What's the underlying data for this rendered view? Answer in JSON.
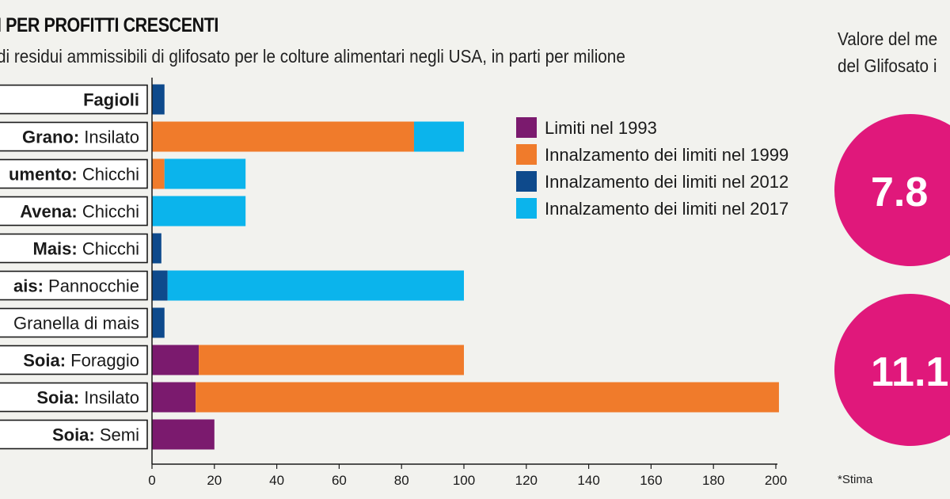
{
  "header": {
    "title": "I PER PROFITTI CRESCENTI",
    "subtitle": "di residui ammissibili di glifosato per le colture alimentari negli USA, in parti per milione"
  },
  "side": {
    "title_line1": "Valore del me",
    "title_line2": "del Glifosato i",
    "bubbles": [
      {
        "label": "7.8",
        "color": "#e0187b"
      },
      {
        "label": "11.1",
        "color": "#e0187b"
      }
    ],
    "footnote": "*Stima"
  },
  "chart_data": {
    "type": "bar",
    "orientation": "horizontal",
    "stacked": true,
    "categories": [
      {
        "bold": "Fagioli",
        "rest": ""
      },
      {
        "bold": "Grano:",
        "rest": " Insilato"
      },
      {
        "bold": "umento:",
        "rest": " Chicchi"
      },
      {
        "bold": "Avena:",
        "rest": " Chicchi"
      },
      {
        "bold": "Mais:",
        "rest": " Chicchi"
      },
      {
        "bold": "ais:",
        "rest": " Pannocchie"
      },
      {
        "bold": "",
        "rest": "Granella di mais"
      },
      {
        "bold": "Soia:",
        "rest": " Foraggio"
      },
      {
        "bold": "Soia:",
        "rest": " Insilato"
      },
      {
        "bold": "Soia:",
        "rest": " Semi"
      }
    ],
    "series": [
      {
        "name": "Limiti nel 1993",
        "color": "#7b1a6e",
        "values": [
          0,
          0,
          0,
          0,
          0,
          0,
          0,
          15,
          14,
          20
        ]
      },
      {
        "name": "Innalzamento dei limiti nel 1999",
        "color": "#f07b2b",
        "values": [
          0,
          84,
          4,
          0,
          0,
          0,
          0,
          85,
          187,
          0
        ]
      },
      {
        "name": "Innalzamento dei limiti nel 2012",
        "color": "#0e4a8c",
        "values": [
          4,
          0,
          0,
          0,
          3,
          5,
          4,
          0,
          0,
          0
        ]
      },
      {
        "name": "Innalzamento dei limiti nel 2017",
        "color": "#0bb4ec",
        "values": [
          0,
          16,
          26,
          30,
          0,
          95,
          0,
          0,
          0,
          0
        ]
      }
    ],
    "xlim": [
      0,
      200
    ],
    "xticks": [
      0,
      20,
      40,
      60,
      80,
      100,
      120,
      140,
      160,
      180,
      200
    ],
    "legend_position": "top-right",
    "grid": false
  }
}
